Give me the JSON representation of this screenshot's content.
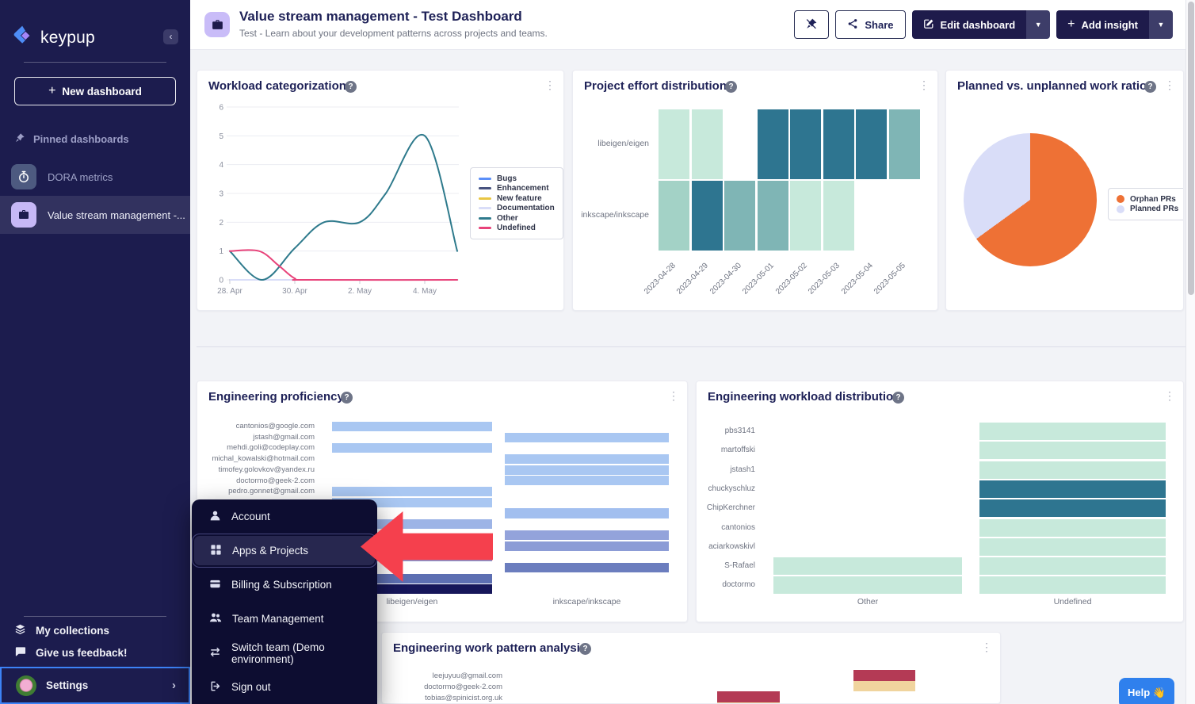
{
  "colors": {
    "accent_blue": "#2F80ED",
    "navy": "#1E1B4B",
    "sidebar_bg": "#1C1C4E",
    "menu_bg": "#0D0D31",
    "red_arrow": "#F5404D",
    "bar_blue": "#A9C7F2",
    "teal_dark": "#2E7590",
    "mint": "#C7E9DB",
    "pie_orange": "#EE7135",
    "pie_lavender": "#D9DDF8",
    "crimson": "#B43A55",
    "tan": "#F0D49E"
  },
  "sidebar": {
    "logo_text": "keypup",
    "collapse_icon": "‹",
    "new_dashboard_label": "New dashboard",
    "pinned_section_label": "Pinned dashboards",
    "pinned_items": [
      {
        "label": "DORA metrics",
        "icon": "stopwatch",
        "icon_bg": "#4D5A80",
        "icon_color": "#FFFFFF",
        "active": false
      },
      {
        "label": "Value stream management -...",
        "icon": "briefcase",
        "icon_bg": "#C6B8F6",
        "icon_color": "#1C1C4E",
        "active": true
      }
    ],
    "footer_items": [
      {
        "label": "My collections",
        "icon": "layers"
      },
      {
        "label": "Give us feedback!",
        "icon": "chat"
      }
    ],
    "settings": {
      "label": "Settings",
      "chevron": "›"
    }
  },
  "account_menu": {
    "items": [
      {
        "label": "Account",
        "icon": "person",
        "highlighted": false
      },
      {
        "label": "Apps & Projects",
        "icon": "grid",
        "highlighted": true
      },
      {
        "label": "Billing & Subscription",
        "icon": "card",
        "highlighted": false
      },
      {
        "label": "Team Management",
        "icon": "people",
        "highlighted": false
      },
      {
        "label": "Switch team (Demo environment)",
        "icon": "switch",
        "highlighted": false
      },
      {
        "label": "Sign out",
        "icon": "signout",
        "highlighted": false
      }
    ]
  },
  "header": {
    "title": "Value stream management - Test Dashboard",
    "subtitle": "Test - Learn about your development patterns across projects and teams.",
    "buttons": {
      "share": "Share",
      "edit": "Edit dashboard",
      "add": "Add insight"
    }
  },
  "help_button_label": "Help 👋",
  "chart_data": [
    {
      "id": "workload_categorization",
      "title": "Workload categorization",
      "type": "line",
      "x_ticks": [
        {
          "day": 0,
          "label": "28. Apr"
        },
        {
          "day": 2,
          "label": "30. Apr"
        },
        {
          "day": 4,
          "label": "2. May"
        },
        {
          "day": 6,
          "label": "4. May"
        }
      ],
      "y_ticks": [
        0,
        1,
        2,
        3,
        4,
        5,
        6
      ],
      "x_domain": [
        0,
        7
      ],
      "y_domain": [
        0,
        6
      ],
      "legend_position": "right",
      "series": [
        {
          "name": "Bugs",
          "color": "#5B8FF9",
          "points": [
            [
              0,
              0
            ],
            [
              7,
              0
            ]
          ]
        },
        {
          "name": "Enhancement",
          "color": "#47527F",
          "points": [
            [
              0,
              0
            ],
            [
              7,
              0
            ]
          ]
        },
        {
          "name": "New feature",
          "color": "#E9C643",
          "points": [
            [
              0,
              0
            ],
            [
              7,
              0
            ]
          ]
        },
        {
          "name": "Documentation",
          "color": "#D9DDF8",
          "points": [
            [
              0,
              0
            ],
            [
              7,
              0
            ]
          ]
        },
        {
          "name": "Other",
          "color": "#2E7A8C",
          "points": [
            [
              0,
              1
            ],
            [
              1,
              0
            ],
            [
              2,
              1.1
            ],
            [
              2.9,
              2
            ],
            [
              4,
              2
            ],
            [
              4.8,
              3
            ],
            [
              6,
              5
            ],
            [
              7,
              1
            ]
          ]
        },
        {
          "name": "Undefined",
          "color": "#E8437A",
          "points": [
            [
              0,
              1
            ],
            [
              0.9,
              1
            ],
            [
              1.5,
              0.5
            ],
            [
              2,
              0.05
            ],
            [
              2.4,
              0
            ],
            [
              7,
              0
            ]
          ]
        }
      ]
    },
    {
      "id": "project_effort",
      "title": "Project effort distribution",
      "type": "heatmap",
      "rows": [
        "libeigen/eigen",
        "inkscape/inkscape"
      ],
      "columns": [
        "2023-04-28",
        "2023-04-29",
        "2023-04-30",
        "2023-05-01",
        "2023-05-02",
        "2023-05-03",
        "2023-05-04",
        "2023-05-05"
      ],
      "cells": [
        [
          "#C7E9DB",
          "#C7E9DB",
          null,
          "#2E7590",
          "#2E7590",
          "#2E7590",
          "#2E7590",
          "#7FB5B5"
        ],
        [
          "#A3D2C6",
          "#2E7590",
          "#7FB5B5",
          "#7FB5B5",
          "#C7E9DB",
          "#C7E9DB",
          null,
          null
        ]
      ]
    },
    {
      "id": "planned_ratio",
      "title": "Planned vs. unplanned work ratio",
      "type": "pie",
      "slices": [
        {
          "label": "Orphan PRs",
          "color": "#EE7135",
          "percent": 65
        },
        {
          "label": "Planned PRs",
          "color": "#D9DDF8",
          "percent": 35
        }
      ]
    },
    {
      "id": "proficiency",
      "title": "Engineering proficiency",
      "type": "bar",
      "groups": [
        "libeigen/eigen",
        "inkscape/inkscape"
      ],
      "rows": [
        {
          "label": "cantonios@google.com",
          "group": 0,
          "color": "#A9C7F2"
        },
        {
          "label": "jstash@gmail.com",
          "group": 1,
          "color": "#A9C7F2"
        },
        {
          "label": "mehdi.goli@codeplay.com",
          "group": 0,
          "color": "#A9C7F2"
        },
        {
          "label": "michal_kowalski@hotmail.com",
          "group": 1,
          "color": "#A9C7F2"
        },
        {
          "label": "timofey.golovkov@yandex.ru",
          "group": 1,
          "color": "#A9C7F2"
        },
        {
          "label": "doctormo@geek-2.com",
          "group": 1,
          "color": "#A9C7F2"
        },
        {
          "label": "pedro.gonnet@gmail.com",
          "group": 0,
          "color": "#A9C7F2"
        },
        {
          "label": "",
          "group": 0,
          "color": "#A9C7F2"
        },
        {
          "label": "",
          "group": 1,
          "color": "#A2BFEF"
        },
        {
          "label": "",
          "group": 0,
          "color": "#9DB4E6"
        },
        {
          "label": "",
          "group": 1,
          "color": "#93A3DB"
        },
        {
          "label": "",
          "group": 1,
          "color": "#8C9CD6"
        },
        {
          "label": "",
          "group": 0,
          "color": "#8495CE"
        },
        {
          "label": "",
          "group": 1,
          "color": "#6B7DBE"
        },
        {
          "label": "",
          "group": 0,
          "color": "#5D6FB2"
        },
        {
          "label": "",
          "group": 0,
          "color": "#16165A"
        }
      ]
    },
    {
      "id": "workload_distribution",
      "title": "Engineering workload distribution",
      "type": "bar",
      "groups": [
        "Other",
        "Undefined"
      ],
      "rows": [
        {
          "label": "pbs3141",
          "other": null,
          "undef": "#C7E9DB"
        },
        {
          "label": "martoffski",
          "other": null,
          "undef": "#C7E9DB"
        },
        {
          "label": "jstash1",
          "other": null,
          "undef": "#C7E9DB"
        },
        {
          "label": "chuckyschluz",
          "other": null,
          "undef": "#2E7590"
        },
        {
          "label": "ChipKerchner",
          "other": null,
          "undef": "#2E7590"
        },
        {
          "label": "cantonios",
          "other": null,
          "undef": "#C7E9DB"
        },
        {
          "label": "aciarkowskivl",
          "other": null,
          "undef": "#C7E9DB"
        },
        {
          "label": "S-Rafael",
          "other": "#C7E9DB",
          "undef": "#C7E9DB"
        },
        {
          "label": "doctormo",
          "other": "#C7E9DB",
          "undef": "#C7E9DB"
        }
      ]
    },
    {
      "id": "work_pattern",
      "title": "Engineering work pattern analysis",
      "type": "bar",
      "rows": [
        "leejuyuu@gmail.com",
        "doctormo@geek-2.com",
        "tobias@spinicist.org.uk"
      ],
      "bars": [
        {
          "row": 0,
          "group": 1,
          "color": "#B43A55"
        },
        {
          "row": 1,
          "group": 1,
          "color": "#F0D49E"
        },
        {
          "row": 2,
          "group": 0,
          "color": "#B43A55"
        },
        {
          "row": 3,
          "group": 0,
          "color": "#F0D49E"
        }
      ]
    }
  ]
}
